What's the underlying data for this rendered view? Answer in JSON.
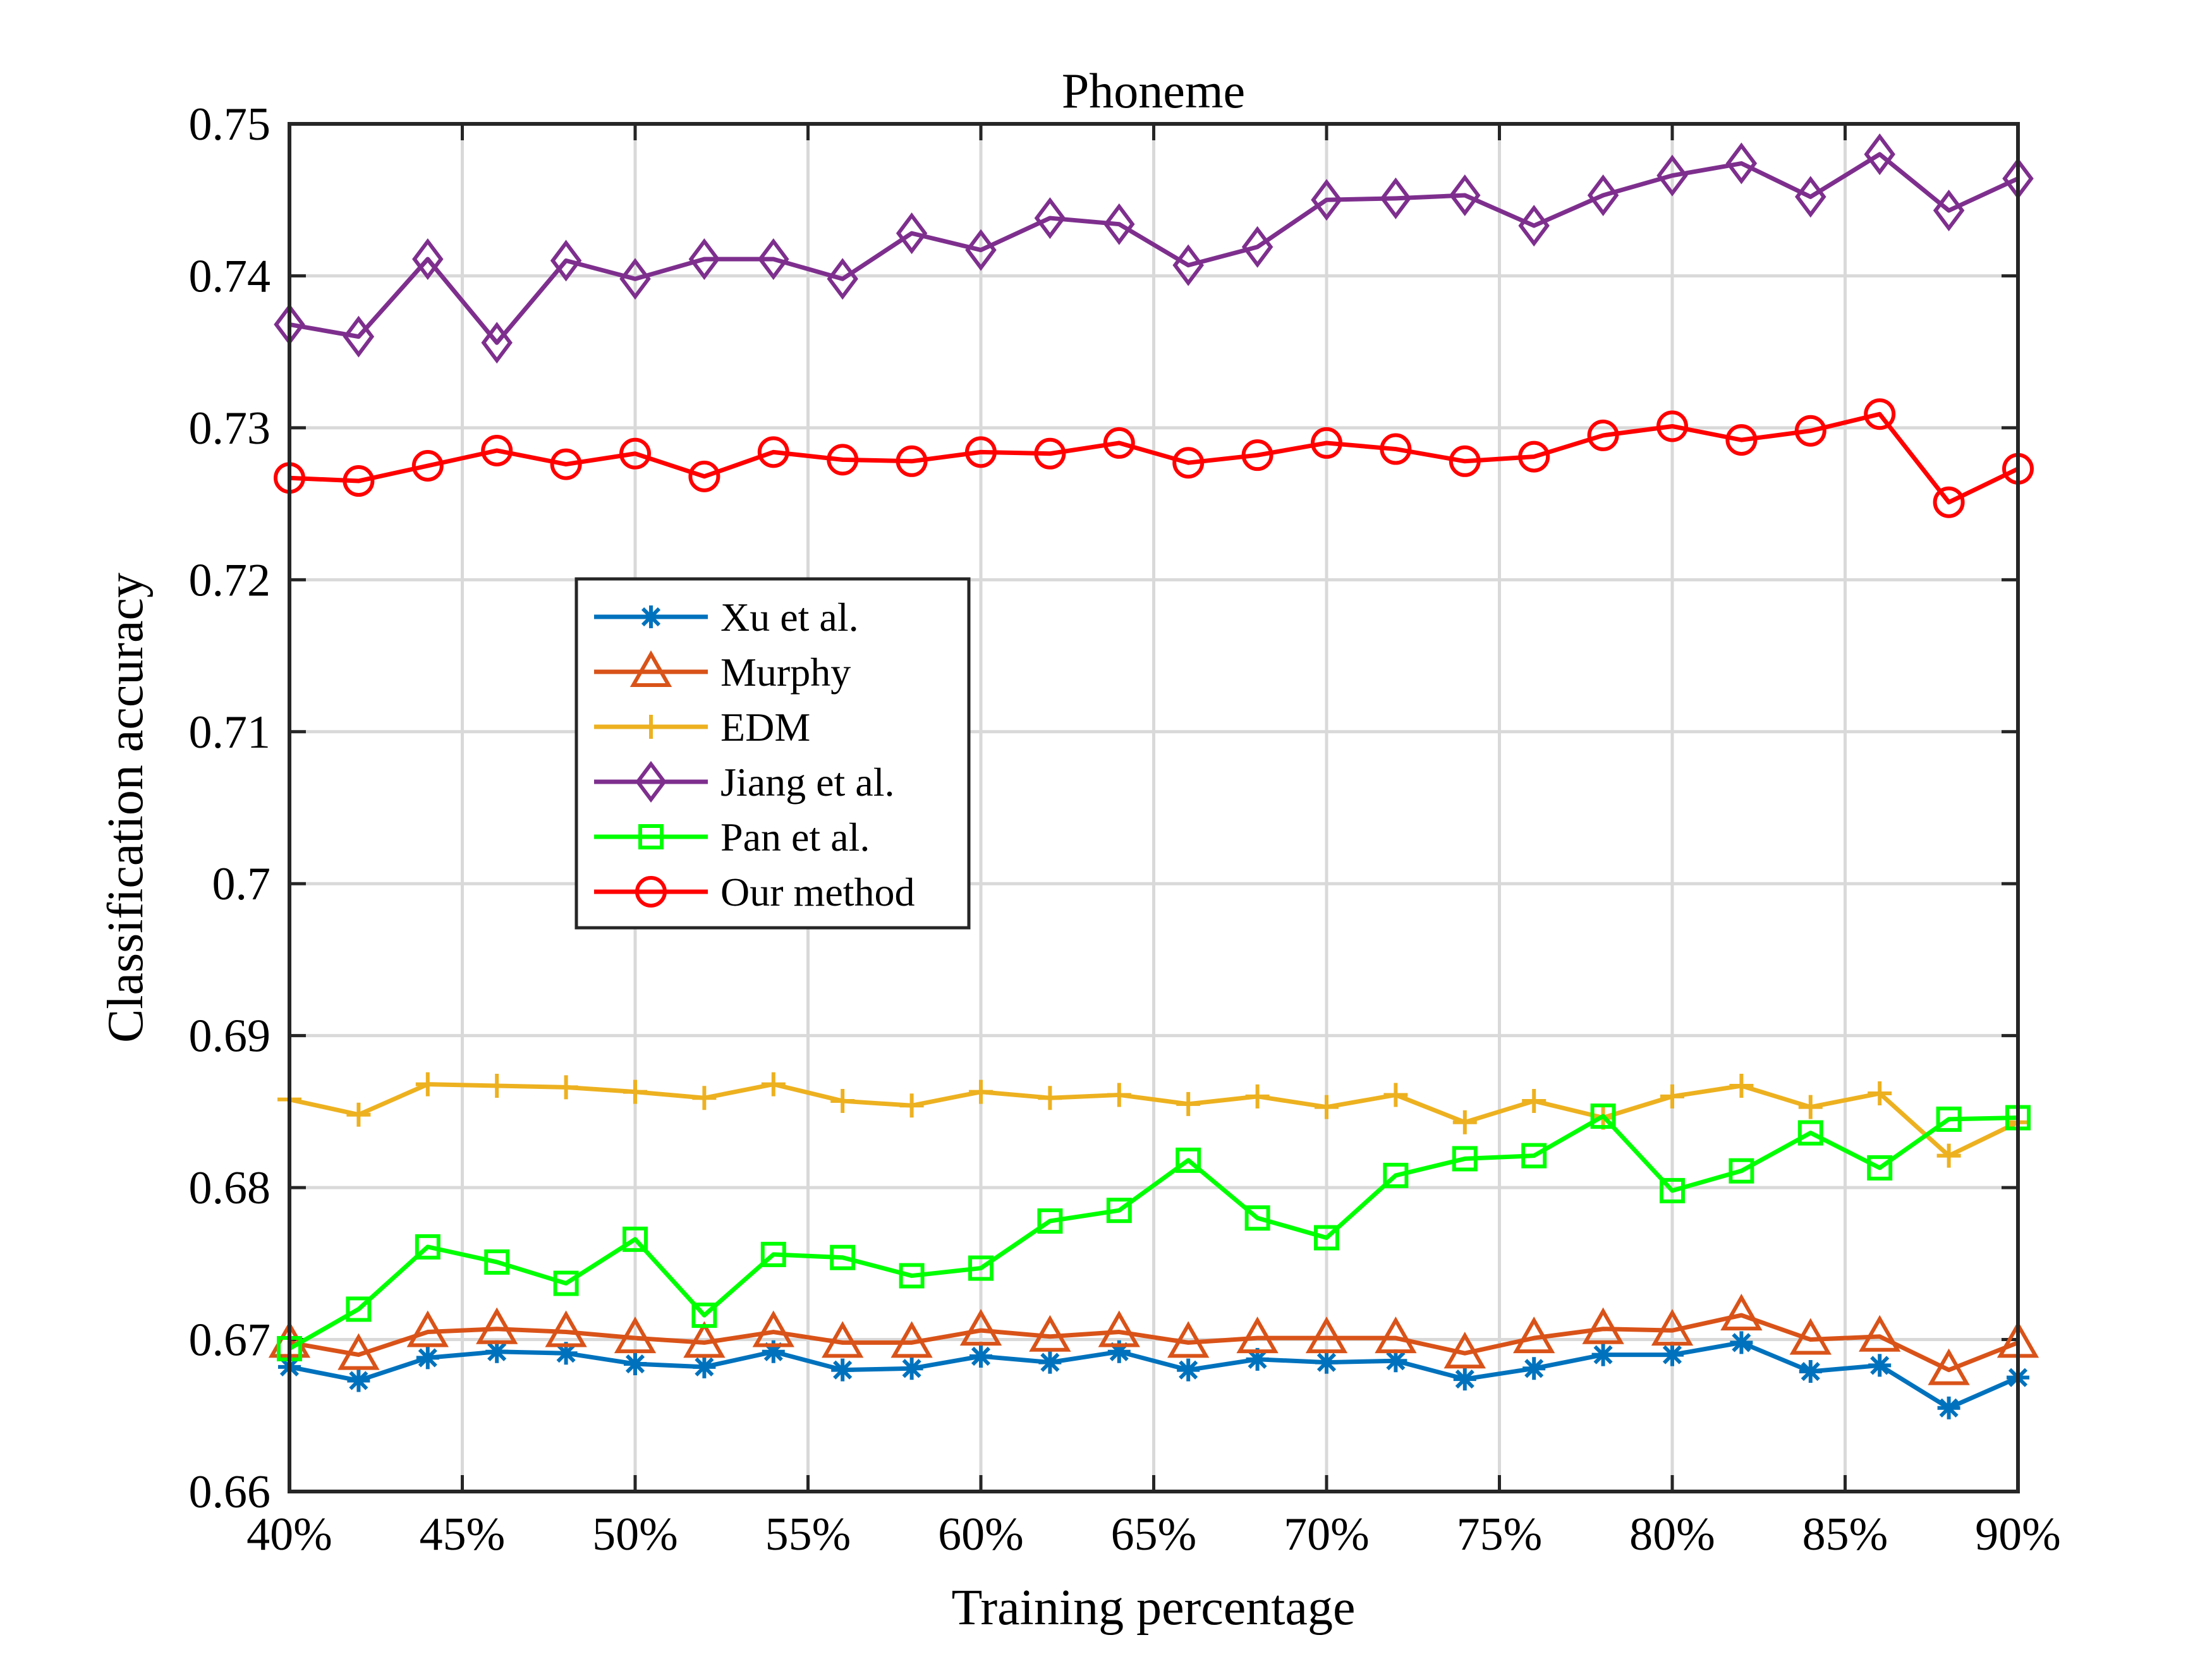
{
  "chart_data": {
    "type": "line",
    "title": "Phoneme",
    "xlabel": "Training percentage",
    "ylabel": "Classification accuracy",
    "x": [
      40,
      42,
      44,
      46,
      48,
      50,
      52,
      54,
      56,
      58,
      60,
      62,
      64,
      66,
      68,
      70,
      72,
      74,
      76,
      78,
      80,
      82,
      84,
      86,
      88,
      90
    ],
    "xlim": [
      40,
      90
    ],
    "ylim": [
      0.66,
      0.75
    ],
    "x_ticks": [
      "40%",
      "45%",
      "50%",
      "55%",
      "60%",
      "65%",
      "70%",
      "75%",
      "80%",
      "85%",
      "90%"
    ],
    "y_ticks": [
      "0.66",
      "0.67",
      "0.68",
      "0.69",
      "0.7",
      "0.71",
      "0.72",
      "0.73",
      "0.74",
      "0.75"
    ],
    "grid": true,
    "legend_position": "center-left",
    "series": [
      {
        "name": "Xu et al.",
        "color": "#0072BD",
        "marker": "asterisk",
        "values": [
          0.6682,
          0.6673,
          0.6688,
          0.6692,
          0.6691,
          0.6684,
          0.6682,
          0.6692,
          0.668,
          0.6681,
          0.6689,
          0.6685,
          0.6692,
          0.668,
          0.6687,
          0.6685,
          0.6686,
          0.6674,
          0.6681,
          0.669,
          0.669,
          0.6698,
          0.6679,
          0.6683,
          0.6655,
          0.6675
        ]
      },
      {
        "name": "Murphy",
        "color": "#D95319",
        "marker": "triangle",
        "values": [
          0.6698,
          0.669,
          0.6705,
          0.6707,
          0.6705,
          0.6701,
          0.6698,
          0.6705,
          0.6698,
          0.6698,
          0.6706,
          0.6702,
          0.6705,
          0.6698,
          0.6701,
          0.6701,
          0.6701,
          0.6691,
          0.6701,
          0.6707,
          0.6706,
          0.6716,
          0.67,
          0.6702,
          0.668,
          0.6698
        ]
      },
      {
        "name": "EDM",
        "color": "#EDB120",
        "marker": "plus",
        "values": [
          0.6858,
          0.6848,
          0.6868,
          0.6867,
          0.6866,
          0.6863,
          0.6859,
          0.6868,
          0.6857,
          0.6854,
          0.6863,
          0.6859,
          0.6861,
          0.6855,
          0.686,
          0.6853,
          0.6861,
          0.6843,
          0.6857,
          0.6846,
          0.686,
          0.6867,
          0.6853,
          0.6862,
          0.6821,
          0.6843
        ]
      },
      {
        "name": "Jiang et al.",
        "color": "#7E2F8E",
        "marker": "diamond",
        "values": [
          0.7368,
          0.736,
          0.7411,
          0.7356,
          0.741,
          0.7398,
          0.7411,
          0.7411,
          0.7398,
          0.7428,
          0.7417,
          0.7438,
          0.7434,
          0.7407,
          0.7419,
          0.745,
          0.7451,
          0.7453,
          0.7433,
          0.7453,
          0.7466,
          0.7474,
          0.7452,
          0.748,
          0.7443,
          0.7464
        ]
      },
      {
        "name": "Pan et al.",
        "color": "#00FF00",
        "marker": "square",
        "values": [
          0.6694,
          0.672,
          0.6761,
          0.6751,
          0.6737,
          0.6766,
          0.6716,
          0.6756,
          0.6754,
          0.6742,
          0.6747,
          0.6778,
          0.6785,
          0.6818,
          0.678,
          0.6767,
          0.6808,
          0.6819,
          0.6821,
          0.6847,
          0.6798,
          0.6811,
          0.6836,
          0.6813,
          0.6845,
          0.6846
        ]
      },
      {
        "name": "Our method",
        "color": "#FF0000",
        "marker": "circle",
        "values": [
          0.7267,
          0.7265,
          0.7275,
          0.7285,
          0.7276,
          0.7283,
          0.7268,
          0.7284,
          0.7279,
          0.7278,
          0.7284,
          0.7283,
          0.729,
          0.7277,
          0.7282,
          0.729,
          0.7286,
          0.7278,
          0.7281,
          0.7295,
          0.7301,
          0.7292,
          0.7298,
          0.7309,
          0.7251,
          0.7273
        ]
      }
    ]
  }
}
